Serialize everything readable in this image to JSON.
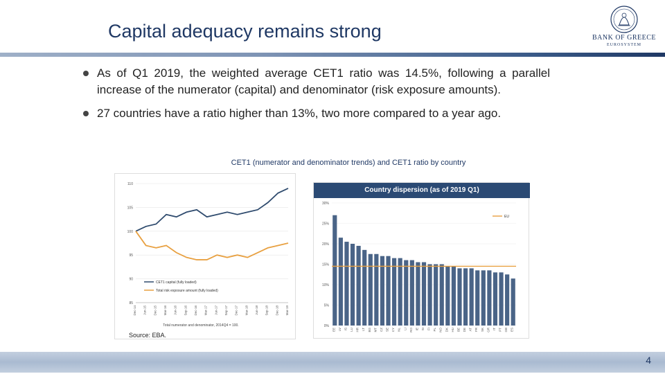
{
  "slide": {
    "title": "Capital adequacy remains strong",
    "logo": {
      "name": "BANK OF GREECE",
      "sub": "EUROSYSTEM"
    },
    "bullets": [
      "As of Q1 2019, the weighted average CET1 ratio was 14.5%, following a parallel increase of the numerator (capital) and denominator (risk exposure amounts).",
      "27 countries have a ratio higher than 13%, two more compared to a year ago."
    ],
    "chart_caption": "CET1 (numerator and denominator trends) and CET1 ratio by country",
    "source": "Source: EBA.",
    "page_number": "4"
  },
  "chart_data": [
    {
      "type": "line",
      "x": [
        "Dec-14",
        "Jun-15",
        "Dec-15",
        "Mar-16",
        "Jun-16",
        "Sep-16",
        "Dec-16",
        "Mar-17",
        "Jun-17",
        "Sep-17",
        "Dec-17",
        "Mar-18",
        "Jun-18",
        "Sep-18",
        "Dec-18",
        "Mar-19"
      ],
      "x_tick_labels": [
        "Dec-14",
        "Jun-15",
        "Dec-15",
        "Mar-16",
        "Jun-16",
        "Sep-16",
        "Dec-16",
        "Mar-17",
        "Jun-17",
        "Sep-17",
        "Dec-17",
        "Mar-18",
        "Jun-18",
        "Sep-18",
        "Dec-18",
        "Mar-19"
      ],
      "series": [
        {
          "name": "CET1 capital (fully loaded)",
          "color": "#2f4b6e",
          "values": [
            100,
            101,
            101.5,
            103.5,
            103,
            104,
            104.5,
            103,
            103.5,
            104,
            103.5,
            104,
            104.5,
            106,
            108,
            109
          ]
        },
        {
          "name": "Total risk exposure amount (fully loaded)",
          "color": "#e8a040",
          "values": [
            100,
            97,
            96.5,
            97,
            95.5,
            94.5,
            94,
            94,
            95,
            94.5,
            95,
            94.5,
            95.5,
            96.5,
            97,
            97.5
          ]
        }
      ],
      "ylim": [
        85,
        110
      ],
      "y_ticks": [
        85,
        90,
        95,
        100,
        105,
        110
      ],
      "xlabel": "Total numerator and denominator, 2014Q4 = 100.",
      "legend_position": "bottom-left"
    },
    {
      "type": "bar",
      "title": "Country dispersion (as of 2019 Q1)",
      "categories": [
        "EE",
        "LV",
        "IS",
        "LU",
        "HR",
        "LT",
        "BG",
        "MT",
        "CZ",
        "SE",
        "CY",
        "NL",
        "LI",
        "RO",
        "IE",
        "SI",
        "FI",
        "PL",
        "NO",
        "DK",
        "HU",
        "BE",
        "DE",
        "AT",
        "FR",
        "SK",
        "GR",
        "IT",
        "PT",
        "GB",
        "ES"
      ],
      "values": [
        27,
        21.5,
        20.5,
        20,
        19.5,
        18.5,
        17.5,
        17.5,
        17,
        17,
        16.5,
        16.5,
        16,
        16,
        15.5,
        15.5,
        15,
        15,
        15,
        14.5,
        14.5,
        14,
        14,
        14,
        13.5,
        13.5,
        13.5,
        13,
        13,
        12.5,
        11.5
      ],
      "ylim": [
        0,
        30
      ],
      "y_ticks": [
        "0%",
        "5%",
        "10%",
        "15%",
        "20%",
        "25%",
        "30%"
      ],
      "reference_line": {
        "name": "EU",
        "value": 14.5,
        "color": "#e8a040"
      },
      "bar_color": "#4a6487"
    }
  ]
}
